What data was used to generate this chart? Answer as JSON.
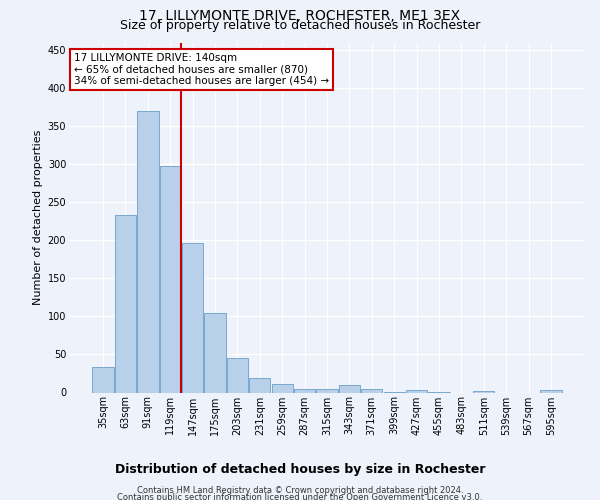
{
  "title1": "17, LILLYMONTE DRIVE, ROCHESTER, ME1 3EX",
  "title2": "Size of property relative to detached houses in Rochester",
  "xlabel": "Distribution of detached houses by size in Rochester",
  "ylabel": "Number of detached properties",
  "categories": [
    "35sqm",
    "63sqm",
    "91sqm",
    "119sqm",
    "147sqm",
    "175sqm",
    "203sqm",
    "231sqm",
    "259sqm",
    "287sqm",
    "315sqm",
    "343sqm",
    "371sqm",
    "399sqm",
    "427sqm",
    "455sqm",
    "483sqm",
    "511sqm",
    "539sqm",
    "567sqm",
    "595sqm"
  ],
  "values": [
    33,
    233,
    370,
    298,
    197,
    104,
    46,
    19,
    11,
    4,
    5,
    10,
    5,
    1,
    3,
    1,
    0,
    2,
    0,
    0,
    3
  ],
  "bar_color": "#b8d0ea",
  "bar_edge_color": "#6a9fc8",
  "vline_color": "#cc0000",
  "annotation_line1": "17 LILLYMONTE DRIVE: 140sqm",
  "annotation_line2": "← 65% of detached houses are smaller (870)",
  "annotation_line3": "34% of semi-detached houses are larger (454) →",
  "annotation_box_color": "#ffffff",
  "annotation_box_edge_color": "#cc0000",
  "ylim": [
    0,
    460
  ],
  "yticks": [
    0,
    50,
    100,
    150,
    200,
    250,
    300,
    350,
    400,
    450
  ],
  "footer1": "Contains HM Land Registry data © Crown copyright and database right 2024.",
  "footer2": "Contains public sector information licensed under the Open Government Licence v3.0.",
  "background_color": "#eef2fb",
  "grid_color": "#ffffff",
  "title1_fontsize": 10,
  "title2_fontsize": 9,
  "tick_fontsize": 7,
  "ylabel_fontsize": 8,
  "xlabel_fontsize": 9,
  "annotation_fontsize": 7.5,
  "footer_fontsize": 6
}
